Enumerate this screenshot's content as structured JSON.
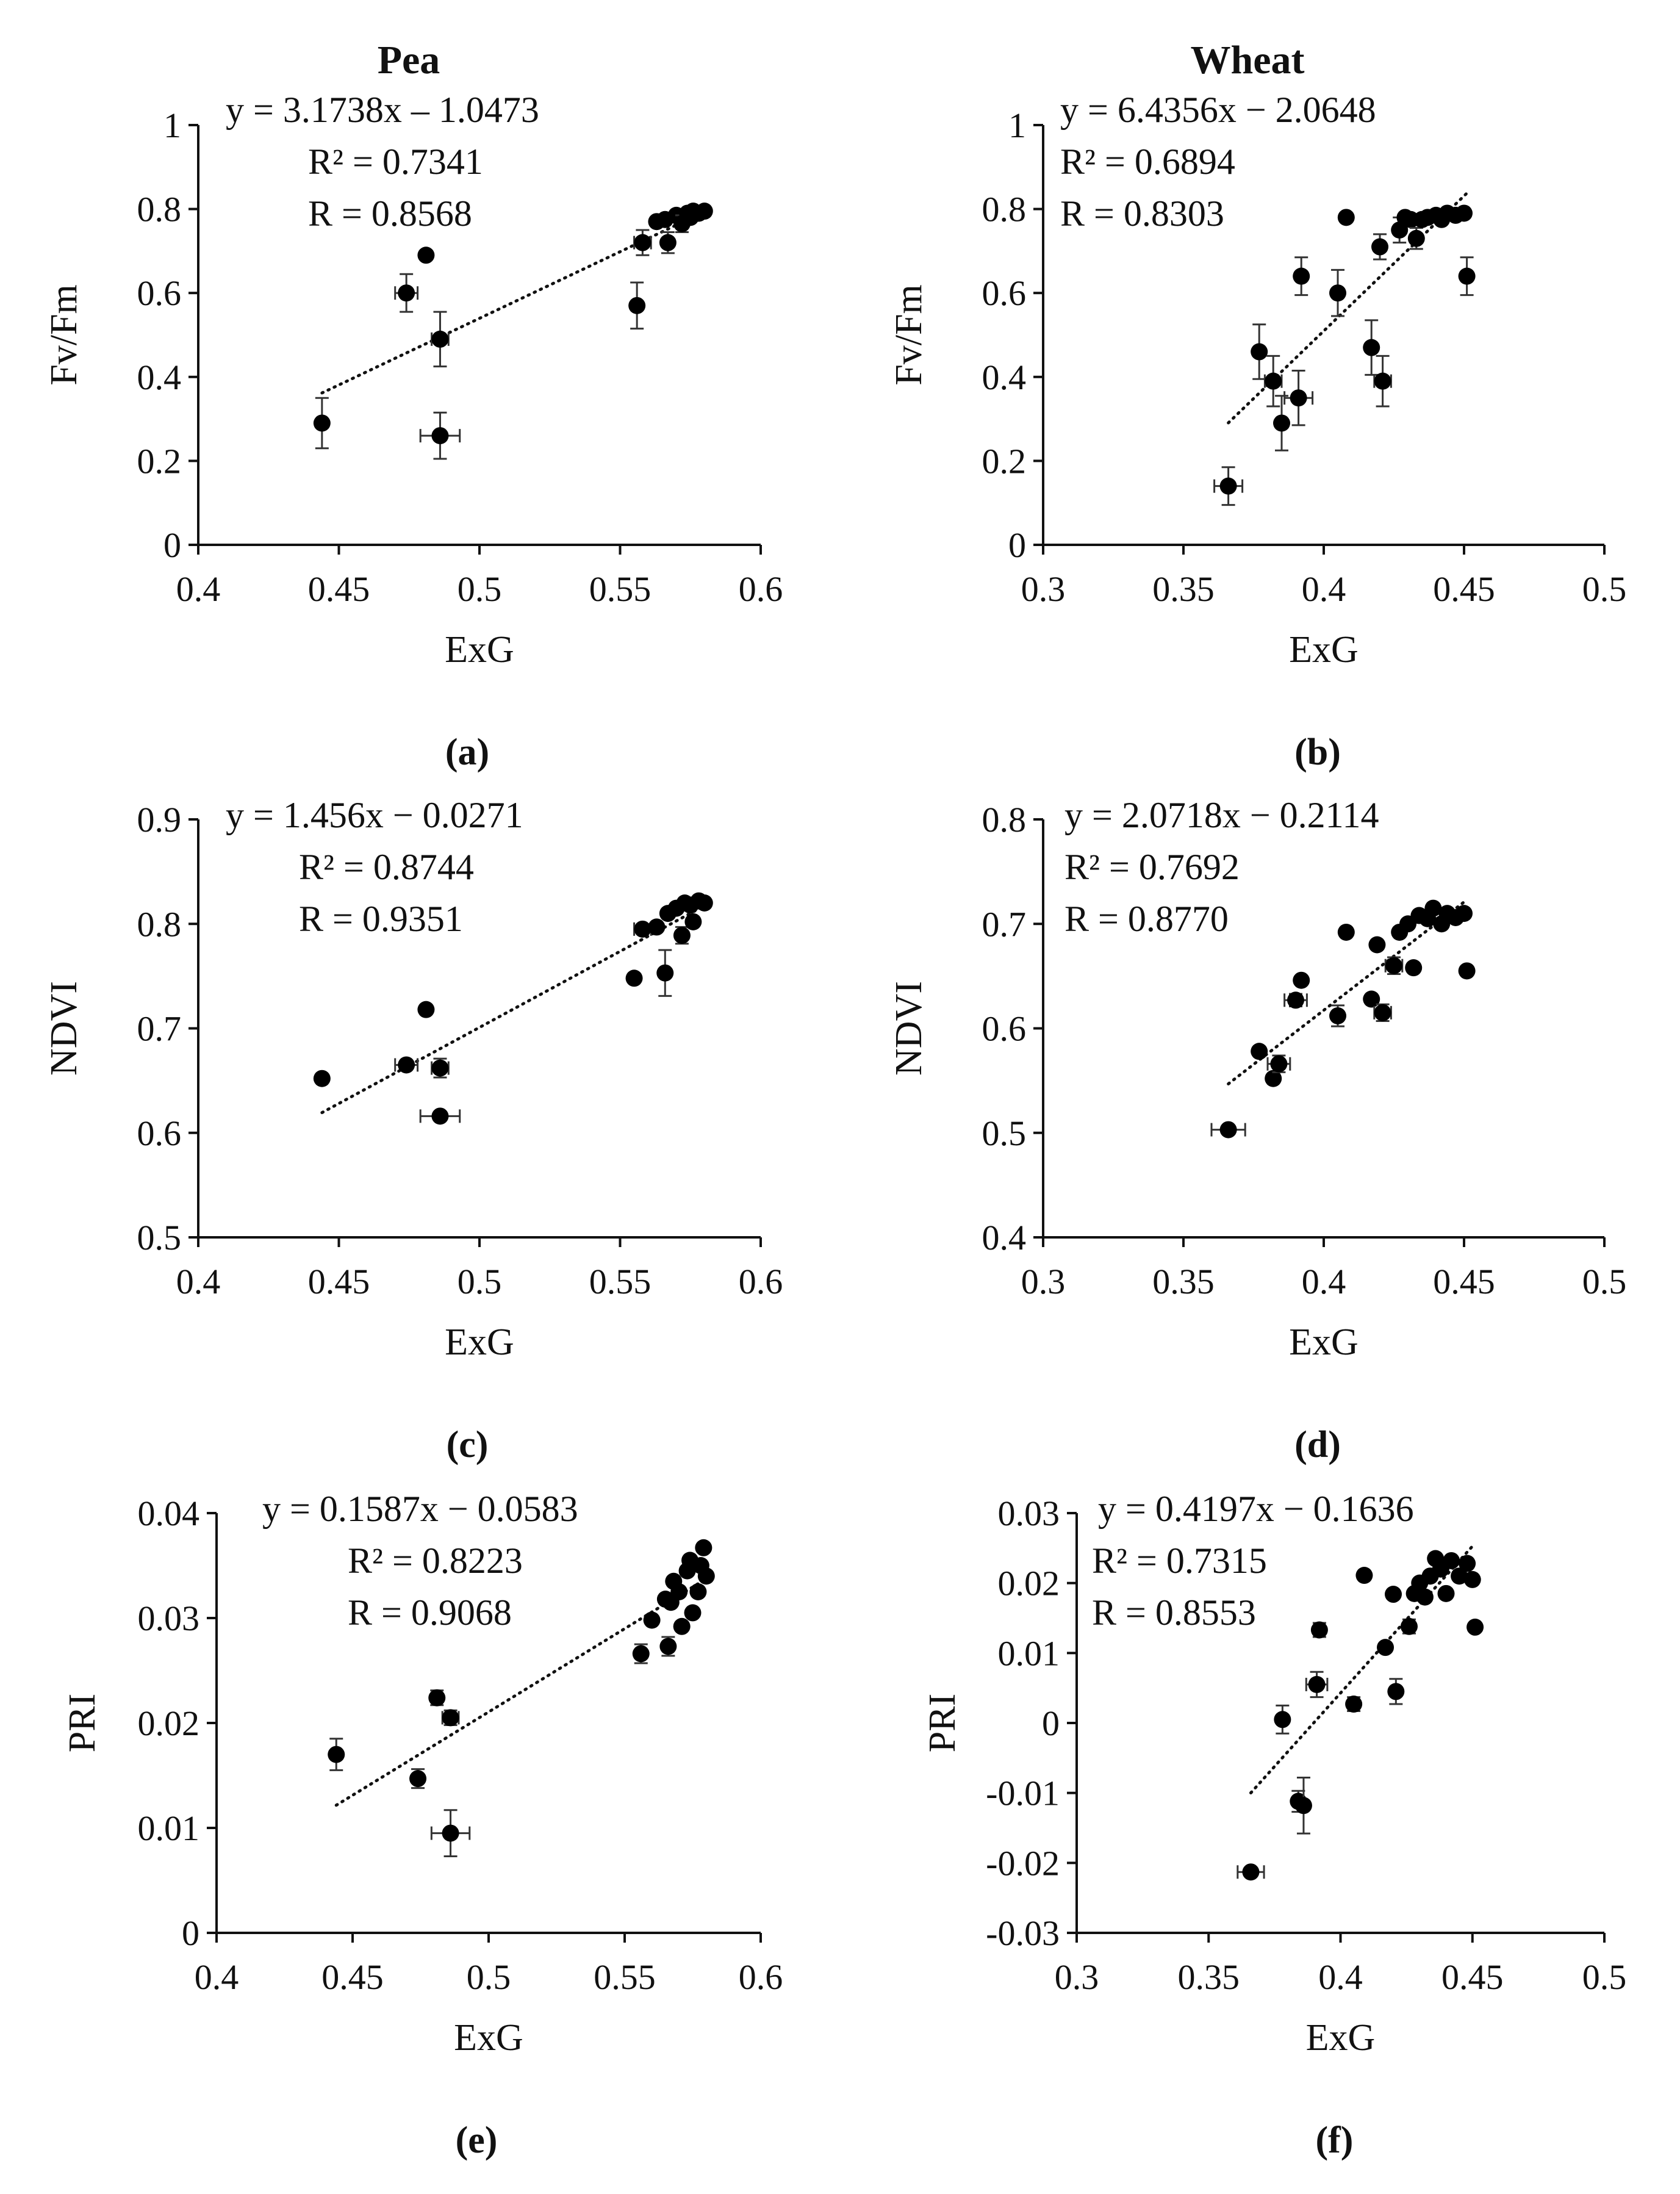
{
  "column_titles": [
    "Pea",
    "Wheat"
  ],
  "chart_data": [
    {
      "type": "scatter",
      "panel_label": "(a)",
      "crop": "Pea",
      "xlabel": "ExG",
      "ylabel": "Fv/Fm",
      "xlim": [
        0.4,
        0.6
      ],
      "xticks": [
        "0.4",
        "0.45",
        "0.5",
        "0.55",
        "0.6"
      ],
      "xtick_values": [
        0.4,
        0.45,
        0.5,
        0.55,
        0.6
      ],
      "ylim": [
        0,
        1
      ],
      "yticks": [
        "0",
        "0.2",
        "0.4",
        "0.6",
        "0.8",
        "1"
      ],
      "ytick_values": [
        0,
        0.2,
        0.4,
        0.6,
        0.8,
        1
      ],
      "equation": "y = 3.1738x – 1.0473",
      "r2": "R² = 0.7341",
      "r": "R = 0.8568",
      "trendline": {
        "slope": 3.1738,
        "intercept": -1.0473,
        "x_range": [
          0.444,
          0.58
        ]
      },
      "points": [
        {
          "x": 0.444,
          "y": 0.29,
          "xerr": 0,
          "yerr": 0.06
        },
        {
          "x": 0.474,
          "y": 0.6,
          "xerr": 0.004,
          "yerr": 0.045
        },
        {
          "x": 0.481,
          "y": 0.69,
          "xerr": 0,
          "yerr": 0
        },
        {
          "x": 0.486,
          "y": 0.49,
          "xerr": 0.003,
          "yerr": 0.065
        },
        {
          "x": 0.486,
          "y": 0.26,
          "xerr": 0.007,
          "yerr": 0.055
        },
        {
          "x": 0.556,
          "y": 0.57,
          "xerr": 0,
          "yerr": 0.055
        },
        {
          "x": 0.558,
          "y": 0.72,
          "xerr": 0.003,
          "yerr": 0.03
        },
        {
          "x": 0.563,
          "y": 0.77,
          "xerr": 0,
          "yerr": 0
        },
        {
          "x": 0.566,
          "y": 0.775,
          "xerr": 0,
          "yerr": 0
        },
        {
          "x": 0.567,
          "y": 0.72,
          "xerr": 0,
          "yerr": 0.025
        },
        {
          "x": 0.57,
          "y": 0.785,
          "xerr": 0,
          "yerr": 0
        },
        {
          "x": 0.572,
          "y": 0.765,
          "xerr": 0,
          "yerr": 0.02
        },
        {
          "x": 0.574,
          "y": 0.79,
          "xerr": 0,
          "yerr": 0
        },
        {
          "x": 0.575,
          "y": 0.78,
          "xerr": 0,
          "yerr": 0
        },
        {
          "x": 0.576,
          "y": 0.795,
          "xerr": 0,
          "yerr": 0
        },
        {
          "x": 0.578,
          "y": 0.79,
          "xerr": 0,
          "yerr": 0
        },
        {
          "x": 0.58,
          "y": 0.795,
          "xerr": 0,
          "yerr": 0
        }
      ]
    },
    {
      "type": "scatter",
      "panel_label": "(b)",
      "crop": "Wheat",
      "xlabel": "ExG",
      "ylabel": "Fv/Fm",
      "xlim": [
        0.3,
        0.5
      ],
      "xticks": [
        "0.3",
        "0.35",
        "0.4",
        "0.45",
        "0.5"
      ],
      "xtick_values": [
        0.3,
        0.35,
        0.4,
        0.45,
        0.5
      ],
      "ylim": [
        0,
        1
      ],
      "yticks": [
        "0",
        "0.2",
        "0.4",
        "0.6",
        "0.8",
        "1"
      ],
      "ytick_values": [
        0,
        0.2,
        0.4,
        0.6,
        0.8,
        1
      ],
      "equation": "y = 6.4356x − 2.0648",
      "r2": "R² = 0.6894",
      "r": "R = 0.8303",
      "trendline": {
        "slope": 6.4356,
        "intercept": -2.0648,
        "x_range": [
          0.366,
          0.451
        ]
      },
      "points": [
        {
          "x": 0.366,
          "y": 0.14,
          "xerr": 0.005,
          "yerr": 0.045
        },
        {
          "x": 0.377,
          "y": 0.46,
          "xerr": 0,
          "yerr": 0.065
        },
        {
          "x": 0.382,
          "y": 0.39,
          "xerr": 0.003,
          "yerr": 0.06
        },
        {
          "x": 0.385,
          "y": 0.29,
          "xerr": 0,
          "yerr": 0.065
        },
        {
          "x": 0.391,
          "y": 0.35,
          "xerr": 0.005,
          "yerr": 0.065
        },
        {
          "x": 0.392,
          "y": 0.64,
          "xerr": 0,
          "yerr": 0.045
        },
        {
          "x": 0.405,
          "y": 0.6,
          "xerr": 0,
          "yerr": 0.055
        },
        {
          "x": 0.408,
          "y": 0.78,
          "xerr": 0,
          "yerr": 0
        },
        {
          "x": 0.417,
          "y": 0.47,
          "xerr": 0,
          "yerr": 0.065
        },
        {
          "x": 0.42,
          "y": 0.71,
          "xerr": 0,
          "yerr": 0.03
        },
        {
          "x": 0.421,
          "y": 0.39,
          "xerr": 0.003,
          "yerr": 0.06
        },
        {
          "x": 0.427,
          "y": 0.75,
          "xerr": 0,
          "yerr": 0.03
        },
        {
          "x": 0.429,
          "y": 0.78,
          "xerr": 0,
          "yerr": 0
        },
        {
          "x": 0.431,
          "y": 0.775,
          "xerr": 0,
          "yerr": 0
        },
        {
          "x": 0.433,
          "y": 0.73,
          "xerr": 0,
          "yerr": 0.025
        },
        {
          "x": 0.435,
          "y": 0.775,
          "xerr": 0,
          "yerr": 0
        },
        {
          "x": 0.437,
          "y": 0.78,
          "xerr": 0,
          "yerr": 0
        },
        {
          "x": 0.44,
          "y": 0.785,
          "xerr": 0,
          "yerr": 0
        },
        {
          "x": 0.442,
          "y": 0.775,
          "xerr": 0,
          "yerr": 0
        },
        {
          "x": 0.444,
          "y": 0.79,
          "xerr": 0,
          "yerr": 0
        },
        {
          "x": 0.447,
          "y": 0.785,
          "xerr": 0,
          "yerr": 0
        },
        {
          "x": 0.45,
          "y": 0.79,
          "xerr": 0,
          "yerr": 0
        },
        {
          "x": 0.451,
          "y": 0.64,
          "xerr": 0,
          "yerr": 0.045
        }
      ]
    },
    {
      "type": "scatter",
      "panel_label": "(c)",
      "crop": "Pea",
      "xlabel": "ExG",
      "ylabel": "NDVI",
      "xlim": [
        0.4,
        0.6
      ],
      "xticks": [
        "0.4",
        "0.45",
        "0.5",
        "0.55",
        "0.6"
      ],
      "xtick_values": [
        0.4,
        0.45,
        0.5,
        0.55,
        0.6
      ],
      "ylim": [
        0.5,
        0.9
      ],
      "yticks": [
        "0.5",
        "0.6",
        "0.7",
        "0.8",
        "0.9"
      ],
      "ytick_values": [
        0.5,
        0.6,
        0.7,
        0.8,
        0.9
      ],
      "equation": "y = 1.456x − 0.0271",
      "r2": "R² = 0.8744",
      "r": "R = 0.9351",
      "trendline": {
        "slope": 1.456,
        "intercept": -0.0271,
        "x_range": [
          0.444,
          0.58
        ]
      },
      "points": [
        {
          "x": 0.444,
          "y": 0.652,
          "xerr": 0,
          "yerr": 0
        },
        {
          "x": 0.474,
          "y": 0.665,
          "xerr": 0.004,
          "yerr": 0
        },
        {
          "x": 0.481,
          "y": 0.718,
          "xerr": 0,
          "yerr": 0
        },
        {
          "x": 0.486,
          "y": 0.662,
          "xerr": 0.003,
          "yerr": 0.009
        },
        {
          "x": 0.486,
          "y": 0.616,
          "xerr": 0.007,
          "yerr": 0
        },
        {
          "x": 0.555,
          "y": 0.748,
          "xerr": 0,
          "yerr": 0
        },
        {
          "x": 0.558,
          "y": 0.795,
          "xerr": 0.003,
          "yerr": 0
        },
        {
          "x": 0.563,
          "y": 0.797,
          "xerr": 0,
          "yerr": 0
        },
        {
          "x": 0.566,
          "y": 0.753,
          "xerr": 0,
          "yerr": 0.022
        },
        {
          "x": 0.567,
          "y": 0.81,
          "xerr": 0,
          "yerr": 0
        },
        {
          "x": 0.57,
          "y": 0.815,
          "xerr": 0,
          "yerr": 0
        },
        {
          "x": 0.572,
          "y": 0.789,
          "xerr": 0,
          "yerr": 0.008
        },
        {
          "x": 0.573,
          "y": 0.82,
          "xerr": 0,
          "yerr": 0
        },
        {
          "x": 0.575,
          "y": 0.818,
          "xerr": 0,
          "yerr": 0
        },
        {
          "x": 0.576,
          "y": 0.802,
          "xerr": 0,
          "yerr": 0
        },
        {
          "x": 0.578,
          "y": 0.822,
          "xerr": 0,
          "yerr": 0
        },
        {
          "x": 0.58,
          "y": 0.82,
          "xerr": 0,
          "yerr": 0
        }
      ]
    },
    {
      "type": "scatter",
      "panel_label": "(d)",
      "crop": "Wheat",
      "xlabel": "ExG",
      "ylabel": "NDVI",
      "xlim": [
        0.3,
        0.5
      ],
      "xticks": [
        "0.3",
        "0.35",
        "0.4",
        "0.45",
        "0.5"
      ],
      "xtick_values": [
        0.3,
        0.35,
        0.4,
        0.45,
        0.5
      ],
      "ylim": [
        0.4,
        0.8
      ],
      "yticks": [
        "0.4",
        "0.5",
        "0.6",
        "0.7",
        "0.8"
      ],
      "ytick_values": [
        0.4,
        0.5,
        0.6,
        0.7,
        0.8
      ],
      "equation": "y = 2.0718x − 0.2114",
      "r2": "R² = 0.7692",
      "r": "R = 0.8770",
      "trendline": {
        "slope": 2.0718,
        "intercept": -0.2114,
        "x_range": [
          0.366,
          0.451
        ]
      },
      "points": [
        {
          "x": 0.366,
          "y": 0.503,
          "xerr": 0.006,
          "yerr": 0
        },
        {
          "x": 0.377,
          "y": 0.578,
          "xerr": 0,
          "yerr": 0
        },
        {
          "x": 0.382,
          "y": 0.552,
          "xerr": 0,
          "yerr": 0
        },
        {
          "x": 0.384,
          "y": 0.566,
          "xerr": 0.004,
          "yerr": 0.008
        },
        {
          "x": 0.39,
          "y": 0.627,
          "xerr": 0.004,
          "yerr": 0.006
        },
        {
          "x": 0.392,
          "y": 0.646,
          "xerr": 0,
          "yerr": 0
        },
        {
          "x": 0.405,
          "y": 0.612,
          "xerr": 0,
          "yerr": 0.01
        },
        {
          "x": 0.408,
          "y": 0.692,
          "xerr": 0,
          "yerr": 0
        },
        {
          "x": 0.417,
          "y": 0.628,
          "xerr": 0,
          "yerr": 0
        },
        {
          "x": 0.419,
          "y": 0.68,
          "xerr": 0,
          "yerr": 0
        },
        {
          "x": 0.421,
          "y": 0.615,
          "xerr": 0.003,
          "yerr": 0.008
        },
        {
          "x": 0.425,
          "y": 0.66,
          "xerr": 0.003,
          "yerr": 0.008
        },
        {
          "x": 0.427,
          "y": 0.692,
          "xerr": 0,
          "yerr": 0
        },
        {
          "x": 0.43,
          "y": 0.7,
          "xerr": 0,
          "yerr": 0
        },
        {
          "x": 0.432,
          "y": 0.658,
          "xerr": 0,
          "yerr": 0
        },
        {
          "x": 0.434,
          "y": 0.708,
          "xerr": 0,
          "yerr": 0
        },
        {
          "x": 0.437,
          "y": 0.705,
          "xerr": 0,
          "yerr": 0
        },
        {
          "x": 0.439,
          "y": 0.715,
          "xerr": 0,
          "yerr": 0
        },
        {
          "x": 0.442,
          "y": 0.7,
          "xerr": 0,
          "yerr": 0
        },
        {
          "x": 0.444,
          "y": 0.71,
          "xerr": 0,
          "yerr": 0
        },
        {
          "x": 0.447,
          "y": 0.706,
          "xerr": 0,
          "yerr": 0
        },
        {
          "x": 0.45,
          "y": 0.71,
          "xerr": 0,
          "yerr": 0
        },
        {
          "x": 0.451,
          "y": 0.655,
          "xerr": 0,
          "yerr": 0
        }
      ]
    },
    {
      "type": "scatter",
      "panel_label": "(e)",
      "crop": "Pea",
      "xlabel": "ExG",
      "ylabel": "PRI",
      "xlim": [
        0.4,
        0.6
      ],
      "xticks": [
        "0.4",
        "0.45",
        "0.5",
        "0.55",
        "0.6"
      ],
      "xtick_values": [
        0.4,
        0.45,
        0.5,
        0.55,
        0.6
      ],
      "ylim": [
        0,
        0.04
      ],
      "yticks": [
        "0",
        "0.01",
        "0.02",
        "0.03",
        "0.04"
      ],
      "ytick_values": [
        0,
        0.01,
        0.02,
        0.03,
        0.04
      ],
      "equation": "y = 0.1587x − 0.0583",
      "r2": "R² = 0.8223",
      "r": "R = 0.9068",
      "trendline": {
        "slope": 0.1587,
        "intercept": -0.0583,
        "x_range": [
          0.444,
          0.58
        ]
      },
      "points": [
        {
          "x": 0.444,
          "y": 0.017,
          "xerr": 0,
          "yerr": 0.0015
        },
        {
          "x": 0.474,
          "y": 0.0147,
          "xerr": 0,
          "yerr": 0.0009
        },
        {
          "x": 0.481,
          "y": 0.0224,
          "xerr": 0,
          "yerr": 0.0007
        },
        {
          "x": 0.486,
          "y": 0.0205,
          "xerr": 0.003,
          "yerr": 0.0007
        },
        {
          "x": 0.486,
          "y": 0.0095,
          "xerr": 0.007,
          "yerr": 0.0022
        },
        {
          "x": 0.556,
          "y": 0.0266,
          "xerr": 0,
          "yerr": 0.0009
        },
        {
          "x": 0.56,
          "y": 0.0298,
          "xerr": 0,
          "yerr": 0
        },
        {
          "x": 0.565,
          "y": 0.0318,
          "xerr": 0,
          "yerr": 0
        },
        {
          "x": 0.566,
          "y": 0.0273,
          "xerr": 0,
          "yerr": 0.0009
        },
        {
          "x": 0.567,
          "y": 0.0315,
          "xerr": 0,
          "yerr": 0
        },
        {
          "x": 0.568,
          "y": 0.0335,
          "xerr": 0,
          "yerr": 0
        },
        {
          "x": 0.57,
          "y": 0.0325,
          "xerr": 0,
          "yerr": 0
        },
        {
          "x": 0.571,
          "y": 0.0292,
          "xerr": 0,
          "yerr": 0
        },
        {
          "x": 0.573,
          "y": 0.0345,
          "xerr": 0,
          "yerr": 0
        },
        {
          "x": 0.574,
          "y": 0.0355,
          "xerr": 0,
          "yerr": 0
        },
        {
          "x": 0.575,
          "y": 0.0305,
          "xerr": 0,
          "yerr": 0
        },
        {
          "x": 0.577,
          "y": 0.0325,
          "xerr": 0,
          "yerr": 0
        },
        {
          "x": 0.578,
          "y": 0.035,
          "xerr": 0,
          "yerr": 0
        },
        {
          "x": 0.579,
          "y": 0.0367,
          "xerr": 0,
          "yerr": 0
        },
        {
          "x": 0.58,
          "y": 0.034,
          "xerr": 0,
          "yerr": 0
        }
      ]
    },
    {
      "type": "scatter",
      "panel_label": "(f)",
      "crop": "Wheat",
      "xlabel": "ExG",
      "ylabel": "PRI",
      "xlim": [
        0.3,
        0.5
      ],
      "xticks": [
        "0.3",
        "0.35",
        "0.4",
        "0.45",
        "0.5"
      ],
      "xtick_values": [
        0.3,
        0.35,
        0.4,
        0.45,
        0.5
      ],
      "ylim": [
        -0.03,
        0.03
      ],
      "yticks": [
        "-0.03",
        "-0.02",
        "-0.01",
        "0",
        "0.01",
        "0.02",
        "0.03"
      ],
      "ytick_values": [
        -0.03,
        -0.02,
        -0.01,
        0,
        0.01,
        0.02,
        0.03
      ],
      "equation": "y = 0.4197x − 0.1636",
      "r2": "R² = 0.7315",
      "r": "R = 0.8553",
      "trendline": {
        "slope": 0.4197,
        "intercept": -0.1636,
        "x_range": [
          0.366,
          0.451
        ]
      },
      "points": [
        {
          "x": 0.366,
          "y": -0.0213,
          "xerr": 0.005,
          "yerr": 0
        },
        {
          "x": 0.378,
          "y": 0.0005,
          "xerr": 0,
          "yerr": 0.002
        },
        {
          "x": 0.384,
          "y": -0.0112,
          "xerr": 0,
          "yerr": 0.0015
        },
        {
          "x": 0.386,
          "y": -0.0118,
          "xerr": 0,
          "yerr": 0.004
        },
        {
          "x": 0.391,
          "y": 0.0055,
          "xerr": 0.004,
          "yerr": 0.0018
        },
        {
          "x": 0.392,
          "y": 0.0133,
          "xerr": 0,
          "yerr": 0.001
        },
        {
          "x": 0.405,
          "y": 0.0027,
          "xerr": 0,
          "yerr": 0.001
        },
        {
          "x": 0.409,
          "y": 0.0211,
          "xerr": 0,
          "yerr": 0
        },
        {
          "x": 0.417,
          "y": 0.0108,
          "xerr": 0,
          "yerr": 0
        },
        {
          "x": 0.42,
          "y": 0.0184,
          "xerr": 0,
          "yerr": 0
        },
        {
          "x": 0.421,
          "y": 0.0045,
          "xerr": 0,
          "yerr": 0.0018
        },
        {
          "x": 0.426,
          "y": 0.0138,
          "xerr": 0,
          "yerr": 0.001
        },
        {
          "x": 0.428,
          "y": 0.0185,
          "xerr": 0,
          "yerr": 0
        },
        {
          "x": 0.43,
          "y": 0.02,
          "xerr": 0,
          "yerr": 0
        },
        {
          "x": 0.432,
          "y": 0.018,
          "xerr": 0,
          "yerr": 0
        },
        {
          "x": 0.434,
          "y": 0.021,
          "xerr": 0,
          "yerr": 0
        },
        {
          "x": 0.436,
          "y": 0.0235,
          "xerr": 0,
          "yerr": 0
        },
        {
          "x": 0.438,
          "y": 0.022,
          "xerr": 0,
          "yerr": 0
        },
        {
          "x": 0.44,
          "y": 0.0185,
          "xerr": 0,
          "yerr": 0
        },
        {
          "x": 0.442,
          "y": 0.0232,
          "xerr": 0,
          "yerr": 0
        },
        {
          "x": 0.445,
          "y": 0.021,
          "xerr": 0,
          "yerr": 0
        },
        {
          "x": 0.448,
          "y": 0.0228,
          "xerr": 0,
          "yerr": 0
        },
        {
          "x": 0.45,
          "y": 0.0205,
          "xerr": 0,
          "yerr": 0
        },
        {
          "x": 0.451,
          "y": 0.0137,
          "xerr": 0,
          "yerr": 0
        }
      ]
    }
  ]
}
